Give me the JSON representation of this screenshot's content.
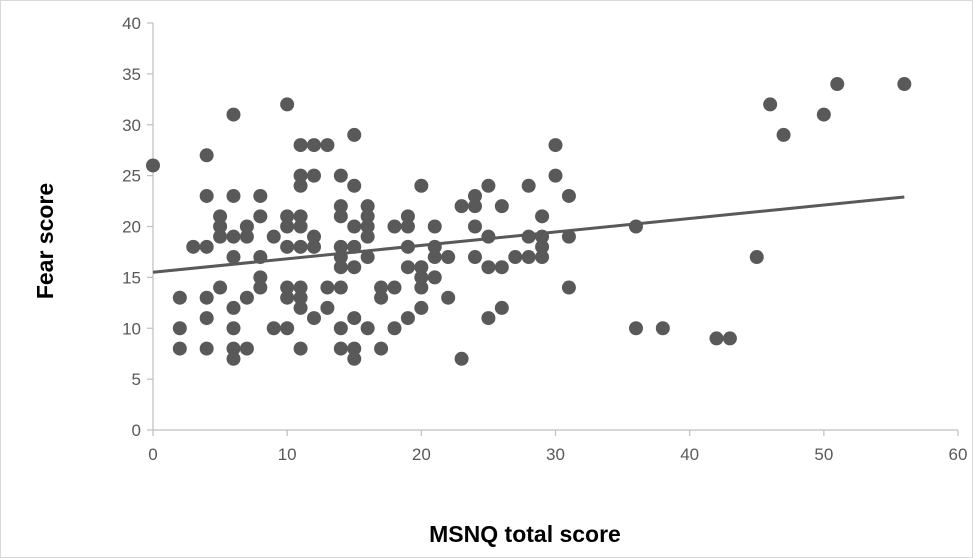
{
  "chart_data": {
    "type": "scatter",
    "title": "",
    "xlabel": "MSNQ total score",
    "ylabel": "Fear score",
    "xlim": [
      0,
      60
    ],
    "ylim": [
      0,
      40
    ],
    "x_ticks": [
      "0",
      "10",
      "20",
      "30",
      "40",
      "50",
      "60"
    ],
    "y_ticks": [
      "0",
      "5",
      "10",
      "15",
      "20",
      "25",
      "30",
      "35",
      "40"
    ],
    "grid": false,
    "legend": "none",
    "marker_color": "#595959",
    "trendline_color": "#595959",
    "trendline": {
      "type": "linear",
      "x": [
        0,
        56
      ],
      "y": [
        15.5,
        22.9
      ]
    },
    "series": [
      {
        "points": [
          [
            0,
            26
          ],
          [
            2,
            13
          ],
          [
            2,
            10
          ],
          [
            2,
            8
          ],
          [
            3,
            18
          ],
          [
            4,
            27
          ],
          [
            4,
            23
          ],
          [
            4,
            18
          ],
          [
            4,
            13
          ],
          [
            4,
            11
          ],
          [
            4,
            8
          ],
          [
            5,
            21
          ],
          [
            5,
            20
          ],
          [
            5,
            19
          ],
          [
            5,
            14
          ],
          [
            6,
            31
          ],
          [
            6,
            23
          ],
          [
            6,
            19
          ],
          [
            6,
            17
          ],
          [
            6,
            12
          ],
          [
            6,
            10
          ],
          [
            6,
            8
          ],
          [
            6,
            7
          ],
          [
            7,
            20
          ],
          [
            7,
            19
          ],
          [
            7,
            13
          ],
          [
            7,
            8
          ],
          [
            8,
            23
          ],
          [
            8,
            21
          ],
          [
            8,
            17
          ],
          [
            8,
            15
          ],
          [
            8,
            14
          ],
          [
            9,
            19
          ],
          [
            9,
            10
          ],
          [
            10,
            32
          ],
          [
            10,
            21
          ],
          [
            10,
            20
          ],
          [
            10,
            18
          ],
          [
            10,
            14
          ],
          [
            10,
            13
          ],
          [
            10,
            10
          ],
          [
            11,
            28
          ],
          [
            11,
            25
          ],
          [
            11,
            24
          ],
          [
            11,
            21
          ],
          [
            11,
            20
          ],
          [
            11,
            18
          ],
          [
            11,
            14
          ],
          [
            11,
            13
          ],
          [
            11,
            12
          ],
          [
            11,
            8
          ],
          [
            12,
            28
          ],
          [
            12,
            25
          ],
          [
            12,
            19
          ],
          [
            12,
            18
          ],
          [
            12,
            11
          ],
          [
            13,
            28
          ],
          [
            13,
            14
          ],
          [
            13,
            12
          ],
          [
            14,
            25
          ],
          [
            14,
            22
          ],
          [
            14,
            21
          ],
          [
            14,
            18
          ],
          [
            14,
            17
          ],
          [
            14,
            16
          ],
          [
            14,
            14
          ],
          [
            14,
            10
          ],
          [
            14,
            8
          ],
          [
            15,
            29
          ],
          [
            15,
            24
          ],
          [
            15,
            20
          ],
          [
            15,
            18
          ],
          [
            15,
            16
          ],
          [
            15,
            11
          ],
          [
            15,
            8
          ],
          [
            15,
            7
          ],
          [
            16,
            22
          ],
          [
            16,
            21
          ],
          [
            16,
            20
          ],
          [
            16,
            19
          ],
          [
            16,
            17
          ],
          [
            16,
            10
          ],
          [
            17,
            14
          ],
          [
            17,
            13
          ],
          [
            17,
            8
          ],
          [
            18,
            20
          ],
          [
            18,
            14
          ],
          [
            18,
            10
          ],
          [
            19,
            21
          ],
          [
            19,
            20
          ],
          [
            19,
            18
          ],
          [
            19,
            16
          ],
          [
            19,
            11
          ],
          [
            20,
            24
          ],
          [
            20,
            16
          ],
          [
            20,
            15
          ],
          [
            20,
            14
          ],
          [
            20,
            12
          ],
          [
            21,
            20
          ],
          [
            21,
            18
          ],
          [
            21,
            17
          ],
          [
            21,
            15
          ],
          [
            22,
            17
          ],
          [
            22,
            13
          ],
          [
            23,
            22
          ],
          [
            23,
            7
          ],
          [
            24,
            23
          ],
          [
            24,
            22
          ],
          [
            24,
            20
          ],
          [
            24,
            17
          ],
          [
            25,
            24
          ],
          [
            25,
            19
          ],
          [
            25,
            16
          ],
          [
            25,
            11
          ],
          [
            26,
            22
          ],
          [
            26,
            16
          ],
          [
            26,
            12
          ],
          [
            27,
            17
          ],
          [
            28,
            24
          ],
          [
            28,
            19
          ],
          [
            28,
            17
          ],
          [
            29,
            21
          ],
          [
            29,
            19
          ],
          [
            29,
            18
          ],
          [
            29,
            17
          ],
          [
            30,
            28
          ],
          [
            30,
            25
          ],
          [
            31,
            23
          ],
          [
            31,
            19
          ],
          [
            31,
            14
          ],
          [
            36,
            20
          ],
          [
            36,
            10
          ],
          [
            38,
            10
          ],
          [
            42,
            9
          ],
          [
            43,
            9
          ],
          [
            45,
            17
          ],
          [
            46,
            32
          ],
          [
            47,
            29
          ],
          [
            50,
            31
          ],
          [
            51,
            34
          ],
          [
            56,
            34
          ]
        ]
      }
    ]
  }
}
